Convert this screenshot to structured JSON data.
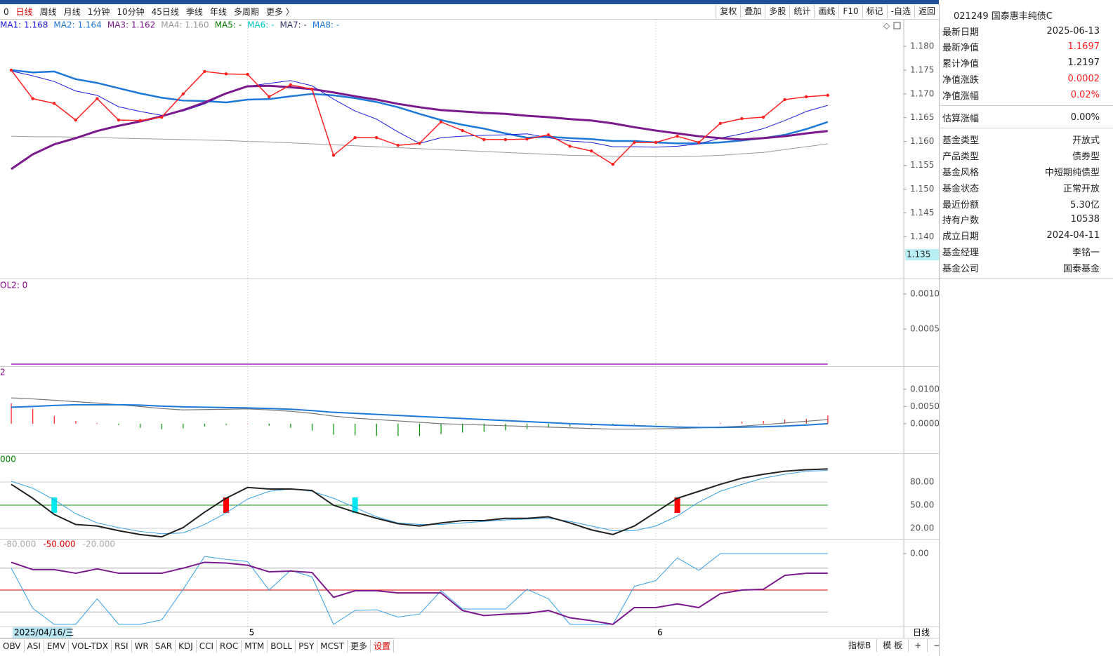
{
  "toolbar": {
    "left": [
      "0",
      "日线",
      "周线",
      "月线",
      "1分钟",
      "10分钟",
      "45日线",
      "季线",
      "年线",
      "多周期",
      "更多 〉"
    ],
    "active_index": 1,
    "right": [
      "复权",
      "叠加",
      "多股",
      "统计",
      "画线",
      "F10",
      "标记",
      "-自选",
      "返回"
    ]
  },
  "cursor": {
    "date": "2025/04/16/三",
    "value": "1.135"
  },
  "period_label": "日线",
  "indicator_tabs": [
    "OBV",
    "ASI",
    "EMV",
    "VOL-TDX",
    "RSI",
    "WR",
    "SAR",
    "KDJ",
    "CCI",
    "ROC",
    "MTM",
    "BOLL",
    "PSY",
    "MCST",
    "更多",
    "设置"
  ],
  "indicator_tabs_active": 15,
  "bottom_right": [
    "指标B",
    "模 板",
    "+",
    "−"
  ],
  "info_panel": {
    "title": "021249 国泰惠丰纯债C",
    "groups": [
      [
        {
          "label": "最新日期",
          "value": "2025-06-13"
        },
        {
          "label": "最新净值",
          "value": "1.1697",
          "color": "#ff2020"
        },
        {
          "label": "累计净值",
          "value": "1.2197"
        },
        {
          "label": "净值涨跌",
          "value": "0.0002",
          "color": "#ff2020"
        },
        {
          "label": "净值涨幅",
          "value": "0.02%",
          "color": "#ff2020"
        }
      ],
      [
        {
          "label": "估算涨幅",
          "value": "0.00%"
        }
      ],
      [
        {
          "label": "基金类型",
          "value": "开放式"
        },
        {
          "label": "产品类型",
          "value": "债券型"
        },
        {
          "label": "基金风格",
          "value": "中短期纯债型"
        },
        {
          "label": "基金状态",
          "value": "正常开放"
        },
        {
          "label": "最近份额",
          "value": "5.30亿"
        },
        {
          "label": "持有户数",
          "value": "10538"
        },
        {
          "label": "成立日期",
          "value": "2024-04-11"
        },
        {
          "label": "基金经理",
          "value": "李铭一"
        },
        {
          "label": "基金公司",
          "value": "国泰基金"
        }
      ]
    ]
  },
  "chart_data": [
    {
      "type": "line",
      "legend": [
        {
          "text": "MA1: 1.168",
          "color": "#1c1cdc"
        },
        {
          "text": "MA2: 1.164",
          "color": "#1e78d8"
        },
        {
          "text": "MA3: 1.162",
          "color": "#7b1a8c"
        },
        {
          "text": "MA4: 1.160",
          "color": "#999999"
        },
        {
          "text": "MA5: -",
          "color": "#008000"
        },
        {
          "text": "MA6: -",
          "color": "#00c8c8"
        },
        {
          "text": "MA7: -",
          "color": "#333366"
        },
        {
          "text": "MA8: -",
          "color": "#1e78d8"
        }
      ],
      "ylim": [
        1.1312,
        1.1856
      ],
      "yticks": [
        {
          "value": 1.18,
          "label": "1.180"
        },
        {
          "value": 1.175,
          "label": "1.175"
        },
        {
          "value": 1.17,
          "label": "1.170"
        },
        {
          "value": 1.165,
          "label": "1.165"
        },
        {
          "value": 1.16,
          "label": "1.160"
        },
        {
          "value": 1.155,
          "label": "1.155"
        },
        {
          "value": 1.15,
          "label": "1.150"
        },
        {
          "value": 1.145,
          "label": "1.145"
        },
        {
          "value": 1.14,
          "label": "1.140"
        }
      ],
      "grid": false,
      "series": [
        {
          "color": "#999999",
          "width": 1,
          "values": [
            1.1611,
            1.161,
            1.161,
            1.1609,
            1.1608,
            1.1607,
            1.1606,
            1.1605,
            1.1604,
            1.1603,
            1.1602,
            1.16,
            1.1599,
            1.1597,
            1.1595,
            1.1593,
            1.1591,
            1.1589,
            1.1587,
            1.1585,
            1.1583,
            1.1581,
            1.1579,
            1.1577,
            1.1575,
            1.1573,
            1.1571,
            1.157,
            1.1569,
            1.1568,
            1.1568,
            1.1568,
            1.1569,
            1.1571,
            1.1574,
            1.1577,
            1.1583,
            1.1589,
            1.1595
          ]
        },
        {
          "color": "#1e78d8",
          "width": 2.5,
          "values": [
            1.175,
            1.1745,
            1.1747,
            1.1731,
            1.1723,
            1.1712,
            1.1701,
            1.1692,
            1.1686,
            1.1685,
            1.1682,
            1.1688,
            1.1689,
            1.1695,
            1.17,
            1.1697,
            1.1691,
            1.1683,
            1.1672,
            1.1658,
            1.1645,
            1.1635,
            1.1627,
            1.1617,
            1.1608,
            1.161,
            1.1607,
            1.1605,
            1.1601,
            1.1601,
            1.1598,
            1.1596,
            1.1596,
            1.1598,
            1.1602,
            1.1607,
            1.1614,
            1.1626,
            1.1641
          ]
        },
        {
          "color": "#1c1cdc",
          "width": 1,
          "values": [
            1.1748,
            1.1738,
            1.1726,
            1.1706,
            1.1697,
            1.1673,
            1.1663,
            1.1655,
            1.1664,
            1.1679,
            1.17,
            1.1716,
            1.1722,
            1.1728,
            1.1717,
            1.1689,
            1.1664,
            1.1647,
            1.162,
            1.1596,
            1.1608,
            1.1611,
            1.1613,
            1.1614,
            1.1616,
            1.1608,
            1.1601,
            1.1598,
            1.1589,
            1.1589,
            1.1588,
            1.159,
            1.1595,
            1.1607,
            1.1616,
            1.1627,
            1.1644,
            1.1663,
            1.1676
          ]
        },
        {
          "color": "#7b1a8c",
          "width": 3,
          "values": [
            1.1542,
            1.1573,
            1.1594,
            1.1607,
            1.1622,
            1.1633,
            1.1642,
            1.1653,
            1.1666,
            1.1682,
            1.1701,
            1.1716,
            1.1717,
            1.1714,
            1.171,
            1.1703,
            1.1695,
            1.1688,
            1.1679,
            1.1672,
            1.1666,
            1.1663,
            1.166,
            1.1658,
            1.1654,
            1.1651,
            1.1647,
            1.1644,
            1.1638,
            1.163,
            1.1623,
            1.1617,
            1.1611,
            1.1607,
            1.1604,
            1.1607,
            1.1611,
            1.1617,
            1.1622
          ]
        },
        {
          "color": "#ff2020",
          "width": 1.5,
          "markers": true,
          "values": [
            1.175,
            1.169,
            1.168,
            1.1645,
            1.169,
            1.1645,
            1.1644,
            1.1651,
            1.17,
            1.1747,
            1.1742,
            1.1741,
            1.1694,
            1.1719,
            1.171,
            1.1571,
            1.1608,
            1.1608,
            1.1592,
            1.1596,
            1.1641,
            1.1623,
            1.1604,
            1.1604,
            1.1605,
            1.1614,
            1.159,
            1.158,
            1.1552,
            1.1598,
            1.1598,
            1.1611,
            1.1598,
            1.1638,
            1.1648,
            1.1651,
            1.1688,
            1.1694,
            1.1697
          ]
        }
      ]
    },
    {
      "type": "line",
      "legend": "OL2: 0",
      "legend_color": "#8b008b",
      "ylim": [
        -3e-05,
        0.0012
      ],
      "yticks": [
        {
          "value": 0.001,
          "label": "0.0010"
        },
        {
          "value": 0.0005,
          "label": "0.0005"
        }
      ],
      "grid": false,
      "series": [
        {
          "color": "#a020c0",
          "width": 1.5,
          "values": [
            0,
            0,
            0,
            0,
            0,
            0,
            0,
            0,
            0,
            0,
            0,
            0,
            0,
            0,
            0,
            0,
            0,
            0,
            0,
            0,
            0,
            0,
            0,
            0,
            0,
            0,
            0,
            0,
            0,
            0,
            0,
            0,
            0,
            0,
            0,
            0,
            0,
            0,
            0
          ]
        }
      ]
    },
    {
      "type": "line",
      "legend": "2",
      "legend_color": "#8b008b",
      "ylim": [
        -0.0086,
        0.0165
      ],
      "yticks": [
        {
          "value": 0.01,
          "label": "0.0100"
        },
        {
          "value": 0.005,
          "label": "0.0050"
        },
        {
          "value": 0,
          "label": "0.0000"
        }
      ],
      "grid": false,
      "series": [
        {
          "kind": "bar",
          "up_color": "#ff2020",
          "down_color": "#009000",
          "values": [
            0.0059,
            0.0043,
            0.0022,
            0.0008,
            0.0002,
            -0.0004,
            -0.0012,
            -0.0016,
            -0.0014,
            -0.0008,
            -0.0004,
            0,
            -0.0006,
            -0.0012,
            -0.002,
            -0.0032,
            -0.0034,
            -0.0036,
            -0.0036,
            -0.0036,
            -0.003,
            -0.0026,
            -0.0024,
            -0.002,
            -0.0016,
            -0.0012,
            -0.0008,
            -0.0006,
            -0.0004,
            -0.0002,
            -0.0002,
            0,
            0,
            0.0002,
            0.0006,
            0.0008,
            0.0012,
            0.0014,
            0.0024
          ]
        },
        {
          "color": "#777777",
          "width": 1.2,
          "values": [
            0.0075,
            0.0072,
            0.0068,
            0.0064,
            0.006,
            0.0055,
            0.005,
            0.0044,
            0.004,
            0.0041,
            0.0042,
            0.0043,
            0.004,
            0.0036,
            0.003,
            0.0022,
            0.0016,
            0.0012,
            0.0008,
            0.0004,
            0,
            -0.0002,
            -0.0004,
            -0.0006,
            -0.0008,
            -0.001,
            -0.0012,
            -0.0014,
            -0.0016,
            -0.0016,
            -0.0015,
            -0.0014,
            -0.0012,
            -0.001,
            -0.0007,
            -0.0003,
            0.0002,
            0.0007,
            0.0012
          ]
        },
        {
          "color": "#1e78d8",
          "width": 2,
          "values": [
            0.0048,
            0.005,
            0.0053,
            0.0055,
            0.0055,
            0.0055,
            0.0054,
            0.0051,
            0.0049,
            0.0048,
            0.0047,
            0.0046,
            0.0044,
            0.0042,
            0.0038,
            0.0033,
            0.003,
            0.0027,
            0.0024,
            0.0021,
            0.0018,
            0.0015,
            0.0012,
            0.0009,
            0.0006,
            0.0003,
            0,
            -0.0002,
            -0.0004,
            -0.0006,
            -0.0008,
            -0.001,
            -0.0011,
            -0.0011,
            -0.001,
            -0.0009,
            -0.0007,
            -0.0004,
            0
          ]
        }
      ]
    },
    {
      "type": "line",
      "legend": "000",
      "legend_color": "#008000",
      "ylim": [
        6.4,
        116.4
      ],
      "yticks": [
        {
          "value": 80,
          "label": "80.00"
        },
        {
          "value": 50,
          "label": "50.00"
        },
        {
          "value": 20,
          "label": "20.00"
        }
      ],
      "grid": true,
      "ref_lines": [
        {
          "value": 50,
          "color": "#109010"
        }
      ],
      "signals": [
        {
          "index": 2,
          "color": "#00e8f0"
        },
        {
          "index": 10,
          "color": "#ff0000"
        },
        {
          "index": 16,
          "color": "#00e8f0"
        },
        {
          "index": 31,
          "color": "#ff0000"
        }
      ],
      "series": [
        {
          "color": "#36a0e8",
          "width": 1,
          "values": [
            81,
            72,
            57,
            39,
            27,
            21,
            16,
            13,
            14,
            25,
            40,
            58,
            68,
            71,
            68,
            59,
            47,
            35,
            27,
            25,
            25,
            27,
            29,
            31,
            32,
            33,
            29,
            23,
            17,
            17,
            23,
            36,
            54,
            68,
            77,
            85,
            90,
            94,
            95
          ]
        },
        {
          "color": "#222222",
          "width": 2,
          "values": [
            77,
            59,
            38,
            25,
            23,
            17,
            12,
            9,
            21,
            41,
            59,
            73,
            71,
            71,
            69,
            50,
            41,
            33,
            26,
            23,
            27,
            30,
            30,
            33,
            33,
            35,
            27,
            18,
            12,
            23,
            41,
            59,
            68,
            77,
            85,
            90,
            94,
            96,
            97
          ]
        }
      ]
    },
    {
      "type": "line",
      "ylim": [
        -100,
        19.2
      ],
      "yticks": [
        {
          "value": 0,
          "label": "0.00"
        }
      ],
      "grid": false,
      "ref_lines": [
        {
          "value": -80,
          "label": "-80.000",
          "color": "#aaaaaa"
        },
        {
          "value": -50,
          "label": "-50.000",
          "color": "#e00000"
        },
        {
          "value": -20,
          "label": "-20.000",
          "color": "#aaaaaa"
        }
      ],
      "categories": [
        null,
        null,
        null,
        null,
        null,
        null,
        null,
        null,
        null,
        null,
        null,
        "5",
        null,
        null,
        null,
        null,
        null,
        null,
        null,
        null,
        null,
        null,
        null,
        null,
        null,
        null,
        null,
        null,
        null,
        null,
        "6",
        null,
        null,
        null,
        null,
        null,
        null,
        null,
        null
      ],
      "series": [
        {
          "color": "#36a0e8",
          "width": 1,
          "values": [
            -20,
            -75,
            -97,
            -97,
            -62,
            -97,
            -97,
            -91,
            -49,
            -4,
            -8,
            -11,
            -50,
            -23,
            -32,
            -97,
            -78,
            -77,
            -87,
            -83,
            -51,
            -76,
            -76,
            -76,
            -49,
            -62,
            -97,
            -97,
            -97,
            -45,
            -37,
            -6,
            -23,
            0,
            0,
            0,
            0,
            0,
            0
          ]
        },
        {
          "color": "#7b1a8c",
          "width": 2,
          "values": [
            -12,
            -22,
            -22,
            -27,
            -21,
            -27,
            -27,
            -27,
            -20,
            -12,
            -13,
            -16,
            -25,
            -24,
            -26,
            -60,
            -51,
            -51,
            -54,
            -54,
            -54,
            -78,
            -85,
            -83,
            -82,
            -78,
            -88,
            -92,
            -97,
            -74,
            -74,
            -69,
            -74,
            -55,
            -50,
            -49,
            -30,
            -27,
            -27
          ]
        }
      ]
    }
  ]
}
